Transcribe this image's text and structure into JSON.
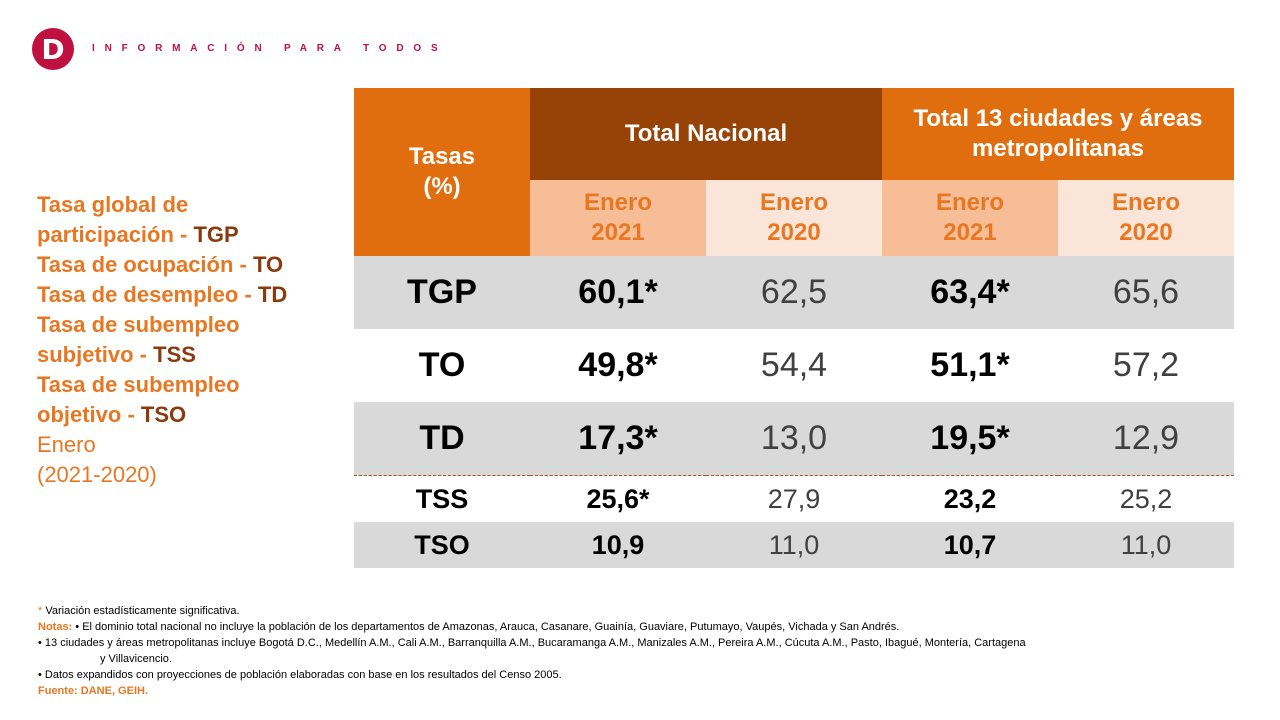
{
  "header": {
    "logo_letter": "D",
    "tagline": "INFORMACIÓN PARA TODOS",
    "brand_color": "#c0103f"
  },
  "sidebar": {
    "lines": [
      {
        "text": "Tasa global de",
        "abbr": ""
      },
      {
        "text": "participación - ",
        "abbr": "TGP"
      },
      {
        "text": "Tasa de ocupación - ",
        "abbr": "TO"
      },
      {
        "text": "Tasa de desempleo - ",
        "abbr": "TD"
      },
      {
        "text": "Tasa de subempleo",
        "abbr": ""
      },
      {
        "text": "subjetivo - ",
        "abbr": "TSS"
      },
      {
        "text": "Tasa de subempleo",
        "abbr": ""
      },
      {
        "text": "objetivo - ",
        "abbr": "TSO"
      }
    ],
    "period_line1": "Enero",
    "period_line2": "(2021-2020)"
  },
  "table": {
    "col_tasas_line1": "Tasas",
    "col_tasas_line2": "(%)",
    "group_nacional": "Total Nacional",
    "group_ciudades_line1": "Total 13 ciudades y áreas",
    "group_ciudades_line2": "metropolitanas",
    "sub_headers": [
      {
        "line1": "Enero",
        "line2": "2021"
      },
      {
        "line1": "Enero",
        "line2": "2020"
      },
      {
        "line1": "Enero",
        "line2": "2021"
      },
      {
        "line1": "Enero",
        "line2": "2020"
      }
    ],
    "rows": [
      {
        "label": "TGP",
        "nac_2021": "60,1*",
        "nac_2020": "62,5",
        "ciu_2021": "63,4*",
        "ciu_2020": "65,6"
      },
      {
        "label": "TO",
        "nac_2021": "49,8*",
        "nac_2020": "54,4",
        "ciu_2021": "51,1*",
        "ciu_2020": "57,2"
      },
      {
        "label": "TD",
        "nac_2021": "17,3*",
        "nac_2020": "13,0",
        "ciu_2021": "19,5*",
        "ciu_2020": "12,9"
      },
      {
        "label": "TSS",
        "nac_2021": "25,6*",
        "nac_2020": "27,9",
        "ciu_2021": "23,2",
        "ciu_2020": "25,2"
      },
      {
        "label": "TSO",
        "nac_2021": "10,9",
        "nac_2020": "11,0",
        "ciu_2021": "10,7",
        "ciu_2020": "11,0"
      }
    ]
  },
  "notes": {
    "star": "*",
    "star_text": " Variación estadísticamente significativa.",
    "notas_label": "Notas:",
    "note1": " • El dominio total nacional no incluye la población de los departamentos de Amazonas, Arauca, Casanare, Guainía, Guaviare, Putumayo, Vaupés, Vichada y San Andrés.",
    "note2": "• 13 ciudades y áreas metropolitanas incluye Bogotá D.C., Medellín A.M., Cali A.M., Barranquilla A.M., Bucaramanga A.M., Manizales A.M., Pereira A.M., Cúcuta A.M., Pasto, Ibagué, Montería, Cartagena",
    "note2_cont": "y Villavicencio.",
    "note3": "• Datos expandidos con proyecciones de población elaboradas con base en los resultados del Censo 2005.",
    "fuente": "Fuente: DANE, GEIH."
  },
  "colors": {
    "orange": "#e06d0e",
    "dark_orange": "#974307",
    "peach": "#f7bd96",
    "light_peach": "#fbe5d8",
    "grey_row": "#d9d9d9"
  }
}
